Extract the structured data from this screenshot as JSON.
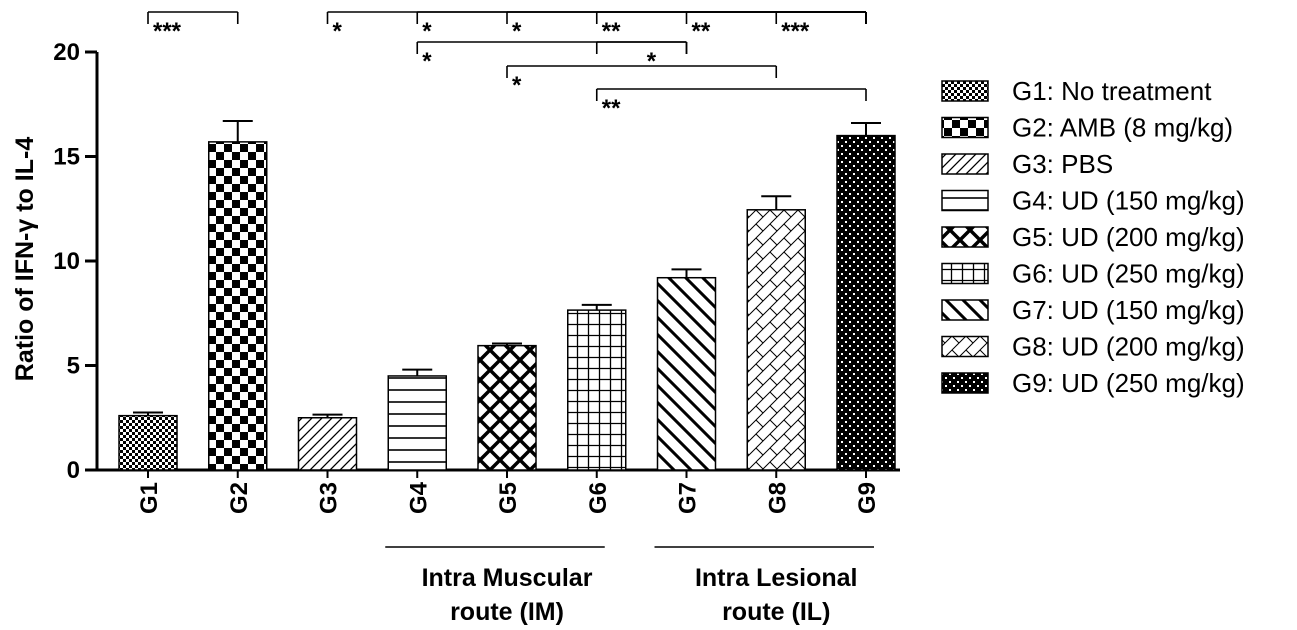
{
  "chart_data": {
    "type": "bar",
    "ylabel": "Ratio of IFN-γ to IL-4",
    "ylim": [
      0,
      20
    ],
    "yticks": [
      0,
      5,
      10,
      15,
      20
    ],
    "categories": [
      "G1",
      "G2",
      "G3",
      "G4",
      "G5",
      "G6",
      "G7",
      "G8",
      "G9"
    ],
    "values": [
      2.6,
      15.7,
      2.5,
      4.5,
      5.95,
      7.65,
      9.2,
      12.45,
      16.0
    ],
    "errors": [
      0.15,
      1.0,
      0.15,
      0.3,
      0.1,
      0.25,
      0.4,
      0.65,
      0.6
    ],
    "legend": [
      "G1:  No treatment",
      "G2: AMB (8 mg/kg)",
      "G3: PBS",
      "G4: UD (150 mg/kg)",
      "G5: UD (200 mg/kg)",
      "G6: UD (250 mg/kg)",
      "G7: UD (150 mg/kg)",
      "G8: UD (200 mg/kg)",
      "G9: UD (250 mg/kg)"
    ],
    "legend_position": "right",
    "route_groups": [
      {
        "line1": "Intra Muscular",
        "line2": "route (IM)",
        "from": "G4",
        "to": "G6"
      },
      {
        "line1": "Intra Lesional",
        "line2": "route (IL)",
        "from": "G7",
        "to": "G9"
      }
    ],
    "significance": [
      {
        "from": "G1",
        "to": "G2",
        "label": "***"
      },
      {
        "from": "G3",
        "to": "G9",
        "label": "*"
      },
      {
        "from": "G4",
        "to": "G9",
        "label": "*"
      },
      {
        "from": "G5",
        "to": "G9",
        "label": "*"
      },
      {
        "from": "G6",
        "to": "G9",
        "label": "**"
      },
      {
        "from": "G7",
        "to": "G9",
        "label": "**"
      },
      {
        "from": "G8",
        "to": "G9",
        "label": "***"
      },
      {
        "from": "G4",
        "to": "G7",
        "label": "*"
      },
      {
        "from": "G6",
        "to": "G7",
        "label": "*"
      },
      {
        "from": "G5",
        "to": "G8",
        "label": "*"
      },
      {
        "from": "G6",
        "to": "G9",
        "label": "**"
      }
    ]
  }
}
